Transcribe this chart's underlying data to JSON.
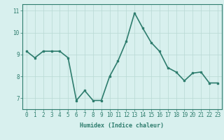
{
  "x": [
    0,
    1,
    2,
    3,
    4,
    5,
    6,
    7,
    8,
    9,
    10,
    11,
    12,
    13,
    14,
    15,
    16,
    17,
    18,
    19,
    20,
    21,
    22,
    23
  ],
  "y": [
    9.15,
    8.85,
    9.15,
    9.15,
    9.15,
    8.85,
    6.9,
    7.35,
    6.9,
    6.9,
    8.0,
    8.7,
    9.6,
    10.9,
    10.2,
    9.55,
    9.15,
    8.4,
    8.2,
    7.8,
    8.15,
    8.2,
    7.7,
    7.7
  ],
  "line_color": "#2e7d6e",
  "marker": "s",
  "marker_size": 2,
  "bg_color": "#d8f0ee",
  "grid_color": "#b8d8d4",
  "xlabel": "Humidex (Indice chaleur)",
  "xlabel_fontsize": 6,
  "yticks": [
    7,
    8,
    9,
    10,
    11
  ],
  "xticks": [
    0,
    1,
    2,
    3,
    4,
    5,
    6,
    7,
    8,
    9,
    10,
    11,
    12,
    13,
    14,
    15,
    16,
    17,
    18,
    19,
    20,
    21,
    22,
    23
  ],
  "ylim": [
    6.5,
    11.3
  ],
  "xlim": [
    -0.5,
    23.5
  ],
  "tick_color": "#2e7d6e",
  "tick_fontsize": 5.5,
  "linewidth": 1.2
}
